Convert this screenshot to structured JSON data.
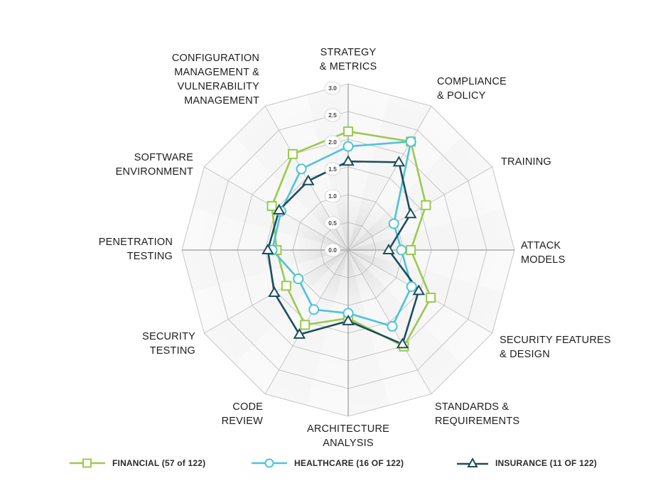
{
  "chart_data": {
    "type": "radar",
    "title": "",
    "axes": [
      "STRATEGY\n& METRICS",
      "COMPLIANCE\n& POLICY",
      "TRAINING",
      "ATTACK\nMODELS",
      "SECURITY FEATURES\n& DESIGN",
      "STANDARDS &\nREQUIREMENTS",
      "ARCHITECTURE\nANALYSIS",
      "CODE\nREVIEW",
      "SECURITY\nTESTING",
      "PENETRATION\nTESTING",
      "SOFTWARE\nENVIRONMENT",
      "CONFIGURATION\nMANAGEMENT &\nVULNERABILITY\nMANAGEMENT"
    ],
    "range": [
      0,
      3.0
    ],
    "ticks": [
      "0.0",
      "0.5",
      "1.0",
      "1.5",
      "2.0",
      "2.5",
      "3.0"
    ],
    "grid": true,
    "legend_position": "bottom",
    "series": [
      {
        "name": "FINANCIAL (57 of 122)",
        "color": "#9bc94e",
        "marker": "square",
        "values": [
          2.14,
          2.26,
          1.62,
          1.13,
          1.72,
          2.01,
          1.23,
          1.56,
          1.29,
          1.29,
          1.59,
          2.0
        ]
      },
      {
        "name": "HEALTHCARE (16 OF 122)",
        "color": "#4ec3d9",
        "marker": "circle",
        "values": [
          1.87,
          2.26,
          0.95,
          0.96,
          1.32,
          1.59,
          1.14,
          1.24,
          1.04,
          1.37,
          1.4,
          1.69
        ]
      },
      {
        "name": "INSURANCE (11 OF 122)",
        "color": "#1d4d5c",
        "marker": "triangle",
        "values": [
          1.6,
          1.83,
          1.3,
          0.73,
          1.47,
          1.96,
          1.28,
          1.76,
          1.54,
          1.45,
          1.44,
          1.44
        ]
      }
    ]
  }
}
